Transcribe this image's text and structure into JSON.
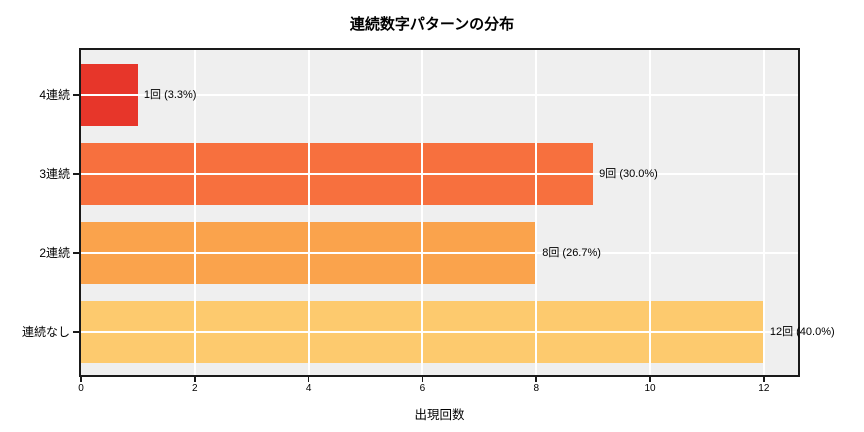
{
  "chart_data": {
    "type": "bar",
    "orientation": "horizontal",
    "title": "連続数字パターンの分布",
    "xlabel": "出現回数",
    "ylabel": "",
    "categories": [
      "4連続",
      "3連続",
      "2連続",
      "連続なし"
    ],
    "values": [
      1,
      9,
      8,
      12
    ],
    "bar_labels": [
      "1回 (3.3%)",
      "9回 (30.0%)",
      "8回 (26.7%)",
      "12回 (40.0%)"
    ],
    "bar_colors": [
      "#e7362a",
      "#f7703e",
      "#faa34c",
      "#fdca6e"
    ],
    "xticks": [
      0,
      2,
      4,
      6,
      8,
      10,
      12
    ],
    "xlim": [
      0,
      12.6
    ],
    "grid": true,
    "grid_color": "#ffffff",
    "plot_background": "#efefef",
    "figure_background": "#ffffff",
    "spine_color": "#1a1a1a",
    "legend": null
  }
}
